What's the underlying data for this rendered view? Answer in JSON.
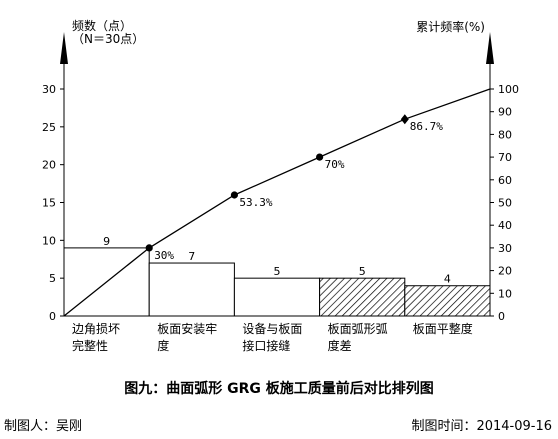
{
  "chart_data": {
    "type": "pareto",
    "left_axis_title": [
      "频数（点）",
      "（N＝30点）"
    ],
    "right_axis_title": "累计频率(%)",
    "categories": [
      [
        "边角损坏",
        "完整性"
      ],
      [
        "板面安装牢",
        "度"
      ],
      [
        "设备与板面",
        "接口接缝"
      ],
      [
        "板面弧形弧",
        "度差"
      ],
      [
        "板面平整度"
      ]
    ],
    "values": [
      9,
      7,
      5,
      5,
      4
    ],
    "cumulative_pct": [
      0,
      30,
      53.3,
      70,
      86.7,
      100
    ],
    "cumulative_labels": [
      "",
      "30%",
      "53.3%",
      "70%",
      "86.7%",
      ""
    ],
    "ylim_left": [
      0,
      30
    ],
    "yticks_left": [
      0,
      5,
      10,
      15,
      20,
      25,
      30
    ],
    "ylim_right": [
      0,
      100
    ],
    "yticks_right": [
      0,
      10,
      20,
      30,
      40,
      50,
      60,
      70,
      80,
      90,
      100
    ],
    "hatched_bars": [
      3,
      4
    ]
  },
  "caption": "图九：曲面弧形 GRG 板施工质量前后对比排列图",
  "maker": "制图人：吴刚",
  "made_date": "制图时间：2014-09-16"
}
